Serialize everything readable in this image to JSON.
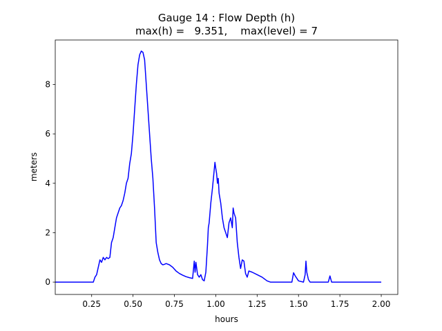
{
  "chart_data": {
    "type": "line",
    "title": "Gauge 14 : Flow Depth (h)",
    "subtitle": "max(h) =   9.351,    max(level) = 7",
    "xlabel": "hours",
    "ylabel": "meters",
    "xlim": [
      0.03,
      2.1
    ],
    "ylim": [
      -0.5,
      9.8
    ],
    "xticks": [
      0.25,
      0.5,
      0.75,
      1.0,
      1.25,
      1.5,
      1.75,
      2.0
    ],
    "xtick_labels": [
      "0.25",
      "0.50",
      "0.75",
      "1.00",
      "1.25",
      "1.50",
      "1.75",
      "2.00"
    ],
    "yticks": [
      0,
      2,
      4,
      6,
      8
    ],
    "ytick_labels": [
      "0",
      "2",
      "4",
      "6",
      "8"
    ],
    "grid": false,
    "line_color": "#0000ff",
    "series": [
      {
        "x": [
          0.03,
          0.26,
          0.27,
          0.28,
          0.29,
          0.3,
          0.31,
          0.32,
          0.33,
          0.34,
          0.35,
          0.36,
          0.37,
          0.38,
          0.39,
          0.4,
          0.41,
          0.42,
          0.43,
          0.44,
          0.45,
          0.46,
          0.47,
          0.48,
          0.49,
          0.5,
          0.51,
          0.52,
          0.53,
          0.54,
          0.55,
          0.56,
          0.57,
          0.58,
          0.59,
          0.6,
          0.61,
          0.62,
          0.63,
          0.64,
          0.65,
          0.66,
          0.67,
          0.68,
          0.69,
          0.7,
          0.72,
          0.74,
          0.76,
          0.78,
          0.8,
          0.82,
          0.84,
          0.86,
          0.87,
          0.875,
          0.88,
          0.89,
          0.9,
          0.91,
          0.92,
          0.93,
          0.94,
          0.95,
          0.955,
          0.96,
          0.97,
          0.98,
          0.99,
          0.995,
          1.0,
          1.005,
          1.01,
          1.015,
          1.02,
          1.03,
          1.04,
          1.05,
          1.06,
          1.07,
          1.08,
          1.09,
          1.1,
          1.105,
          1.11,
          1.12,
          1.13,
          1.14,
          1.15,
          1.16,
          1.17,
          1.18,
          1.19,
          1.2,
          1.22,
          1.25,
          1.28,
          1.31,
          1.33,
          1.4,
          1.46,
          1.47,
          1.48,
          1.49,
          1.5,
          1.53,
          1.54,
          1.545,
          1.55,
          1.56,
          1.57,
          1.6,
          1.68,
          1.69,
          1.7,
          1.72,
          2.0
        ],
        "y": [
          0.0,
          0.0,
          0.2,
          0.3,
          0.6,
          0.9,
          0.8,
          1.0,
          0.9,
          1.0,
          0.95,
          1.0,
          1.6,
          1.8,
          2.2,
          2.6,
          2.8,
          3.0,
          3.1,
          3.3,
          3.6,
          4.0,
          4.2,
          4.8,
          5.2,
          6.0,
          7.0,
          8.0,
          8.8,
          9.2,
          9.351,
          9.3,
          9.0,
          8.0,
          7.0,
          6.0,
          5.0,
          4.2,
          3.0,
          1.6,
          1.2,
          0.9,
          0.75,
          0.7,
          0.72,
          0.75,
          0.7,
          0.6,
          0.45,
          0.35,
          0.28,
          0.22,
          0.18,
          0.15,
          0.85,
          0.4,
          0.8,
          0.3,
          0.2,
          0.3,
          0.1,
          0.05,
          0.4,
          1.5,
          2.2,
          2.4,
          3.2,
          3.8,
          4.5,
          4.85,
          4.6,
          4.4,
          4.0,
          4.2,
          3.6,
          3.2,
          2.6,
          2.2,
          2.0,
          1.8,
          2.4,
          2.6,
          2.2,
          3.0,
          2.8,
          2.6,
          1.6,
          1.0,
          0.55,
          0.9,
          0.85,
          0.35,
          0.2,
          0.45,
          0.4,
          0.3,
          0.2,
          0.05,
          0.0,
          0.0,
          0.0,
          0.38,
          0.25,
          0.15,
          0.05,
          0.0,
          0.3,
          0.85,
          0.4,
          0.1,
          0.0,
          0.0,
          0.0,
          0.25,
          0.0,
          0.0,
          0.0
        ]
      }
    ]
  }
}
